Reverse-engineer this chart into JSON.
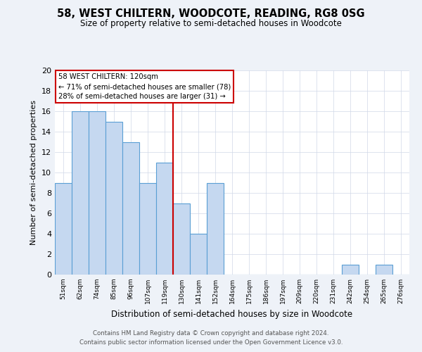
{
  "title": "58, WEST CHILTERN, WOODCOTE, READING, RG8 0SG",
  "subtitle": "Size of property relative to semi-detached houses in Woodcote",
  "xlabel": "Distribution of semi-detached houses by size in Woodcote",
  "ylabel": "Number of semi-detached properties",
  "bin_labels": [
    "51sqm",
    "62sqm",
    "74sqm",
    "85sqm",
    "96sqm",
    "107sqm",
    "119sqm",
    "130sqm",
    "141sqm",
    "152sqm",
    "164sqm",
    "175sqm",
    "186sqm",
    "197sqm",
    "209sqm",
    "220sqm",
    "231sqm",
    "242sqm",
    "254sqm",
    "265sqm",
    "276sqm"
  ],
  "values": [
    9,
    16,
    16,
    15,
    13,
    9,
    11,
    7,
    4,
    9,
    0,
    0,
    0,
    0,
    0,
    0,
    0,
    1,
    0,
    1,
    0
  ],
  "bar_color": "#c5d8f0",
  "bar_edge_color": "#5a9fd4",
  "highlight_line_color": "#cc0000",
  "ylim": [
    0,
    20
  ],
  "yticks": [
    0,
    2,
    4,
    6,
    8,
    10,
    12,
    14,
    16,
    18,
    20
  ],
  "annotation_title": "58 WEST CHILTERN: 120sqm",
  "annotation_line1": "← 71% of semi-detached houses are smaller (78)",
  "annotation_line2": "28% of semi-detached houses are larger (31) →",
  "annotation_box_color": "#ffffff",
  "annotation_border_color": "#cc0000",
  "footer_line1": "Contains HM Land Registry data © Crown copyright and database right 2024.",
  "footer_line2": "Contains public sector information licensed under the Open Government Licence v3.0.",
  "background_color": "#eef2f8",
  "plot_background_color": "#ffffff",
  "grid_color": "#d0d8e8"
}
